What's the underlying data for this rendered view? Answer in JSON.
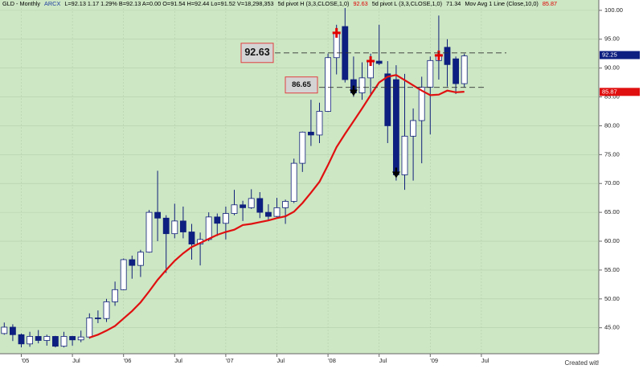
{
  "chart_data": {
    "type": "candlestick",
    "header": [
      {
        "text": "GLD - Monthly",
        "color": "#000000"
      },
      {
        "text": "ARCX",
        "color": "#1f3fa0"
      },
      {
        "text": "L=92.13  1.17  1.29%  B=92.13  A=0.00  O=91.54  H=92.44  Lo=91.52  V=18,298,353",
        "color": "#000000"
      },
      {
        "text": "5d pivot H (3,3,CLOSE,1,0)",
        "color": "#000000"
      },
      {
        "text": "92.63",
        "color": "#e00000"
      },
      {
        "text": "5d pivot L (3,3,CLOSE,1,0)",
        "color": "#000000"
      },
      {
        "text": "71.34",
        "color": "#000000"
      },
      {
        "text": "Mov Avg 1 Line (Close,10,0)",
        "color": "#000000"
      },
      {
        "text": "85.87",
        "color": "#e00000"
      }
    ],
    "footer": "Created with TradeStation",
    "categories": [
      null,
      null,
      "'05",
      null,
      null,
      null,
      null,
      null,
      "Jul",
      null,
      null,
      null,
      null,
      null,
      "'06",
      null,
      null,
      null,
      null,
      null,
      "Jul",
      null,
      null,
      null,
      null,
      null,
      "'07",
      null,
      null,
      null,
      null,
      null,
      "Jul",
      null,
      null,
      null,
      null,
      null,
      "'08",
      null,
      null,
      null,
      null,
      null,
      "Jul",
      null,
      null,
      null,
      null,
      null,
      "'09",
      null,
      null,
      null,
      null,
      null,
      "Jul",
      null,
      null,
      null,
      null,
      null,
      null,
      null,
      null,
      null,
      null,
      null,
      null,
      null
    ],
    "open": [
      44.0,
      45.1,
      43.8,
      42.2,
      43.5,
      42.8,
      43.5,
      41.8,
      43.5,
      42.9,
      43.4,
      46.7,
      46.6,
      49.5,
      51.6,
      56.8,
      55.8,
      58.1,
      65.0,
      64.0,
      61.3,
      63.5,
      61.6,
      59.5,
      60.3,
      64.2,
      63.1,
      64.8,
      66.3,
      65.8,
      67.4,
      65.0,
      64.3,
      65.8,
      66.9,
      73.5,
      78.9,
      78.4,
      82.5,
      91.8,
      97.2,
      88.0,
      85.7,
      88.3,
      91.2,
      89.0,
      88.0,
      71.5,
      78.2,
      80.9,
      86.7,
      91.3,
      93.6,
      91.6,
      87.3,
      null,
      null,
      null,
      null,
      null,
      null,
      null,
      null,
      null,
      null,
      null,
      null,
      null,
      null,
      null
    ],
    "high": [
      45.9,
      45.6,
      44.0,
      44.3,
      44.6,
      43.8,
      43.6,
      44.3,
      43.6,
      44.5,
      47.5,
      48.0,
      50.0,
      53.0,
      57.0,
      57.5,
      58.5,
      65.4,
      72.2,
      64.5,
      66.5,
      66.0,
      63.0,
      61.5,
      65.0,
      64.8,
      66.0,
      68.9,
      67.0,
      69.0,
      68.5,
      66.4,
      67.5,
      67.2,
      74.3,
      79.0,
      84.5,
      84.0,
      92.5,
      97.5,
      100.4,
      92.0,
      91.0,
      92.5,
      97.5,
      91.2,
      90.5,
      89.0,
      83.0,
      88.5,
      92.0,
      99.1,
      95.0,
      92.0,
      92.5,
      null,
      null,
      null,
      null,
      null,
      null,
      null,
      null,
      null,
      null,
      null,
      null,
      null,
      null,
      null
    ],
    "low": [
      43.8,
      42.7,
      41.6,
      41.7,
      42.3,
      41.9,
      41.6,
      41.6,
      41.9,
      42.5,
      43.1,
      45.8,
      46.0,
      48.8,
      51.5,
      53.5,
      53.8,
      58.0,
      60.0,
      54.5,
      60.5,
      60.5,
      56.8,
      55.8,
      60.0,
      60.9,
      60.3,
      64.5,
      63.5,
      65.6,
      64.0,
      63.7,
      64.0,
      63.0,
      66.6,
      72.0,
      76.5,
      77.0,
      82.4,
      88.9,
      87.5,
      85.0,
      84.5,
      85.5,
      90.5,
      77.0,
      70.5,
      68.9,
      70.5,
      73.5,
      78.5,
      88.0,
      86.8,
      85.5,
      86.7,
      null,
      null,
      null,
      null,
      null,
      null,
      null,
      null,
      null,
      null,
      null,
      null,
      null,
      null,
      null
    ],
    "close": [
      45.1,
      43.8,
      42.2,
      43.5,
      42.8,
      43.5,
      41.8,
      43.5,
      42.9,
      43.4,
      46.7,
      46.6,
      49.5,
      51.6,
      56.8,
      55.8,
      58.1,
      65.0,
      64.0,
      61.3,
      63.5,
      61.6,
      59.5,
      60.3,
      64.2,
      63.1,
      64.8,
      66.3,
      65.8,
      67.4,
      65.0,
      64.3,
      65.8,
      66.9,
      73.5,
      78.9,
      78.4,
      82.5,
      91.8,
      96.1,
      88.0,
      85.7,
      88.3,
      91.2,
      90.8,
      80.0,
      71.5,
      78.2,
      80.9,
      86.7,
      91.3,
      92.2,
      90.6,
      87.3,
      92.1,
      null,
      null,
      null,
      null,
      null,
      null,
      null,
      null,
      null,
      null,
      null,
      null,
      null,
      null,
      null
    ],
    "up_color": "#ffffff",
    "down_color": "#0d1f80",
    "outline_color": "#10207a",
    "moving_average": {
      "color": "#e01010",
      "values": [
        null,
        null,
        null,
        null,
        null,
        null,
        null,
        null,
        null,
        null,
        43.3,
        43.8,
        44.5,
        45.3,
        46.6,
        47.9,
        49.4,
        51.3,
        53.3,
        55.0,
        56.6,
        57.9,
        59.0,
        59.7,
        60.4,
        61.1,
        61.6,
        62.0,
        62.8,
        63.0,
        63.3,
        63.6,
        64.0,
        64.3,
        65.1,
        66.6,
        68.4,
        70.3,
        73.2,
        76.3,
        78.6,
        80.8,
        83.0,
        85.3,
        87.5,
        88.5,
        88.8,
        87.9,
        87.0,
        86.1,
        85.3,
        85.4,
        86.1,
        85.8,
        85.9,
        null,
        null,
        null,
        null,
        null,
        null,
        null,
        null,
        null,
        null,
        null,
        null,
        null,
        null,
        null
      ]
    },
    "pivot_high_bars": [
      39,
      43,
      51
    ],
    "pivot_low_bars": [
      41,
      46
    ],
    "pivot_high_color": "#e00000",
    "pivot_low_color": "#000000",
    "hlines": [
      92.63,
      86.65
    ],
    "price_tags": [
      {
        "value": 92.25,
        "color": "#0d1f80"
      },
      {
        "value": 85.87,
        "color": "#e01010"
      }
    ],
    "ylim": [
      40.5,
      100.4
    ],
    "yticks": [
      {
        "value": 100,
        "label": "100.00"
      },
      {
        "value": 95,
        "label": "95.00"
      },
      {
        "value": 90,
        "label": "90.00"
      },
      {
        "value": 85,
        "label": "85.00"
      },
      {
        "value": 80,
        "label": "80.00"
      },
      {
        "value": 75,
        "label": "75.00"
      },
      {
        "value": 70,
        "label": "70.00"
      },
      {
        "value": 65,
        "label": "65.00"
      },
      {
        "value": 60,
        "label": "60.00"
      },
      {
        "value": 55,
        "label": "55.00"
      },
      {
        "value": 50,
        "label": "50.00"
      },
      {
        "value": 45,
        "label": "45.00"
      }
    ],
    "grid": true,
    "background": "#cde6c4"
  }
}
